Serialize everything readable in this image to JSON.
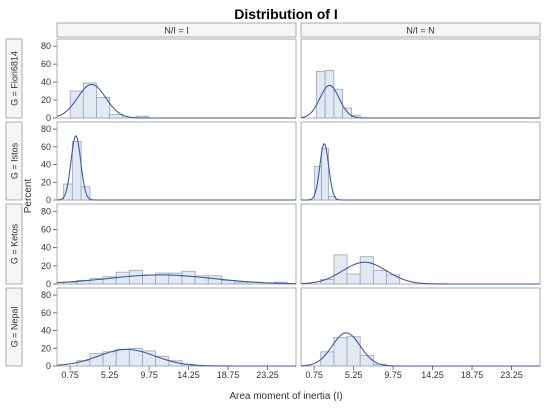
{
  "chart_data": {
    "type": "histogram-panel",
    "title": "Distribution of I",
    "xlabel": "Area moment of inertia (I)",
    "ylabel": "Percent",
    "column_labels": [
      "N/I = I",
      "N/I = N"
    ],
    "row_labels": [
      "G = Fiori6814",
      "G = Istos",
      "G = Ketos",
      "G = Nepal"
    ],
    "x_ticks": [
      "0.75",
      "5.25",
      "9.75",
      "14.25",
      "18.75",
      "23.25"
    ],
    "xlim": [
      -0.75,
      26.5
    ],
    "y_ticks": [
      0,
      20,
      40,
      60,
      80
    ],
    "ylim": [
      0,
      88
    ],
    "colors": {
      "bar_fill": "#e3e9f3",
      "bar_stroke": "#9aa4b8",
      "curve": "#3d5ba4",
      "frame": "#999999",
      "strip": "#f5f5f5"
    },
    "panels": [
      {
        "row": 0,
        "col": 0,
        "bin_width": 1.5,
        "bins": [
          {
            "x": 1.5,
            "y": 30
          },
          {
            "x": 3.0,
            "y": 39
          },
          {
            "x": 4.5,
            "y": 23
          },
          {
            "x": 6.0,
            "y": 4
          },
          {
            "x": 9.0,
            "y": 2
          }
        ],
        "curve": {
          "mu": 3.2,
          "sigma": 1.6
        }
      },
      {
        "row": 0,
        "col": 1,
        "bin_width": 1.0,
        "bins": [
          {
            "x": 1.5,
            "y": 52
          },
          {
            "x": 2.5,
            "y": 53
          },
          {
            "x": 3.5,
            "y": 32
          },
          {
            "x": 4.5,
            "y": 11
          },
          {
            "x": 5.5,
            "y": 3
          }
        ],
        "curve": {
          "mu": 2.5,
          "sigma": 1.1
        }
      },
      {
        "row": 1,
        "col": 0,
        "bin_width": 1.0,
        "bins": [
          {
            "x": 0.5,
            "y": 18
          },
          {
            "x": 1.5,
            "y": 66
          },
          {
            "x": 2.5,
            "y": 15
          }
        ],
        "curve": {
          "mu": 1.4,
          "sigma": 0.55
        }
      },
      {
        "row": 1,
        "col": 1,
        "bin_width": 0.8,
        "bins": [
          {
            "x": 1.2,
            "y": 38
          },
          {
            "x": 2.0,
            "y": 58
          },
          {
            "x": 2.8,
            "y": 4
          }
        ],
        "curve": {
          "mu": 1.9,
          "sigma": 0.5
        }
      },
      {
        "row": 2,
        "col": 0,
        "bin_width": 1.5,
        "bins": [
          {
            "x": 0.75,
            "y": 2
          },
          {
            "x": 2.25,
            "y": 4
          },
          {
            "x": 3.75,
            "y": 6
          },
          {
            "x": 5.25,
            "y": 8
          },
          {
            "x": 6.75,
            "y": 13
          },
          {
            "x": 8.25,
            "y": 15
          },
          {
            "x": 9.75,
            "y": 10
          },
          {
            "x": 11.25,
            "y": 12
          },
          {
            "x": 12.75,
            "y": 12
          },
          {
            "x": 14.25,
            "y": 14
          },
          {
            "x": 15.75,
            "y": 9
          },
          {
            "x": 17.25,
            "y": 9
          },
          {
            "x": 18.75,
            "y": 4
          },
          {
            "x": 20.25,
            "y": 2
          },
          {
            "x": 21.75,
            "y": 2
          },
          {
            "x": 24.75,
            "y": 2
          }
        ],
        "curve": {
          "mu": 11.0,
          "sigma": 6.0
        }
      },
      {
        "row": 2,
        "col": 1,
        "bin_width": 1.5,
        "bins": [
          {
            "x": 2.25,
            "y": 5
          },
          {
            "x": 3.75,
            "y": 32
          },
          {
            "x": 5.25,
            "y": 11
          },
          {
            "x": 6.75,
            "y": 30
          },
          {
            "x": 8.25,
            "y": 15
          },
          {
            "x": 9.75,
            "y": 10
          }
        ],
        "curve": {
          "mu": 6.5,
          "sigma": 2.5
        }
      },
      {
        "row": 3,
        "col": 0,
        "bin_width": 1.5,
        "bins": [
          {
            "x": 2.25,
            "y": 6
          },
          {
            "x": 3.75,
            "y": 14
          },
          {
            "x": 5.25,
            "y": 16
          },
          {
            "x": 6.75,
            "y": 19
          },
          {
            "x": 8.25,
            "y": 20
          },
          {
            "x": 9.75,
            "y": 17
          },
          {
            "x": 11.25,
            "y": 11
          },
          {
            "x": 12.75,
            "y": 6
          },
          {
            "x": 14.25,
            "y": 2
          }
        ],
        "curve": {
          "mu": 7.2,
          "sigma": 3.2
        }
      },
      {
        "row": 3,
        "col": 1,
        "bin_width": 1.5,
        "bins": [
          {
            "x": 2.25,
            "y": 16
          },
          {
            "x": 3.75,
            "y": 32
          },
          {
            "x": 5.25,
            "y": 33
          },
          {
            "x": 6.75,
            "y": 12
          },
          {
            "x": 8.25,
            "y": 2
          }
        ],
        "curve": {
          "mu": 4.4,
          "sigma": 1.6
        }
      }
    ]
  }
}
